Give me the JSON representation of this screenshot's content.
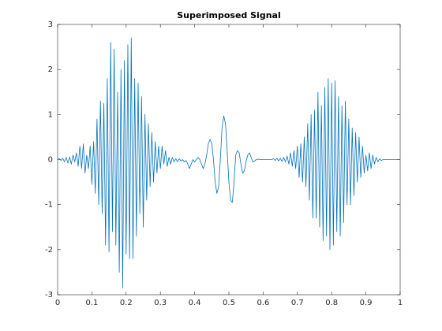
{
  "chart_data": {
    "type": "line",
    "title": "Superimposed Signal",
    "color": "#0072bd",
    "xlim": [
      0,
      1
    ],
    "ylim": [
      -3,
      3
    ],
    "xticks": [
      0,
      0.1,
      0.2,
      0.3,
      0.4,
      0.5,
      0.6,
      0.7,
      0.8,
      0.9,
      1
    ],
    "yticks": [
      -3,
      -2,
      -1,
      0,
      1,
      2,
      3
    ],
    "x": [
      0,
      0.005,
      0.01,
      0.015,
      0.02,
      0.025,
      0.03,
      0.035,
      0.04,
      0.045,
      0.05,
      0.055,
      0.06,
      0.065,
      0.07,
      0.075,
      0.08,
      0.085,
      0.09,
      0.095,
      0.1,
      0.105,
      0.11,
      0.115,
      0.12,
      0.125,
      0.13,
      0.135,
      0.14,
      0.145,
      0.15,
      0.155,
      0.16,
      0.165,
      0.17,
      0.175,
      0.18,
      0.185,
      0.19,
      0.195,
      0.2,
      0.205,
      0.21,
      0.215,
      0.22,
      0.225,
      0.23,
      0.235,
      0.24,
      0.245,
      0.25,
      0.255,
      0.26,
      0.265,
      0.27,
      0.275,
      0.28,
      0.285,
      0.29,
      0.295,
      0.3,
      0.305,
      0.31,
      0.315,
      0.32,
      0.325,
      0.33,
      0.335,
      0.34,
      0.345,
      0.35,
      0.355,
      0.36,
      0.365,
      0.37,
      0.375,
      0.38,
      0.385,
      0.39,
      0.395,
      0.4,
      0.405,
      0.41,
      0.415,
      0.42,
      0.425,
      0.43,
      0.435,
      0.44,
      0.445,
      0.45,
      0.455,
      0.46,
      0.465,
      0.47,
      0.475,
      0.48,
      0.485,
      0.49,
      0.495,
      0.5,
      0.505,
      0.51,
      0.515,
      0.52,
      0.525,
      0.53,
      0.535,
      0.54,
      0.545,
      0.55,
      0.555,
      0.56,
      0.565,
      0.57,
      0.575,
      0.58,
      0.585,
      0.59,
      0.595,
      0.6,
      0.605,
      0.61,
      0.615,
      0.62,
      0.625,
      0.63,
      0.635,
      0.64,
      0.645,
      0.65,
      0.655,
      0.66,
      0.665,
      0.67,
      0.675,
      0.68,
      0.685,
      0.69,
      0.695,
      0.7,
      0.705,
      0.71,
      0.715,
      0.72,
      0.725,
      0.73,
      0.735,
      0.74,
      0.745,
      0.75,
      0.755,
      0.76,
      0.765,
      0.77,
      0.775,
      0.78,
      0.785,
      0.79,
      0.795,
      0.8,
      0.805,
      0.81,
      0.815,
      0.82,
      0.825,
      0.83,
      0.835,
      0.84,
      0.845,
      0.85,
      0.855,
      0.86,
      0.865,
      0.87,
      0.875,
      0.88,
      0.885,
      0.89,
      0.895,
      0.9,
      0.905,
      0.91,
      0.915,
      0.92,
      0.925,
      0.93,
      0.935,
      0.94,
      0.945,
      0.95,
      0.955,
      0.96,
      0.965,
      0.97,
      0.975,
      0.98,
      0.985,
      0.99,
      0.995,
      1
    ],
    "values": [
      0,
      0.02,
      -0.02,
      0.03,
      -0.05,
      0.05,
      -0.08,
      0.06,
      -0.1,
      0.1,
      -0.05,
      0.15,
      -0.15,
      0.3,
      -0.2,
      0.35,
      -0.3,
      0.1,
      -0.2,
      0.3,
      -0.55,
      0.4,
      -0.75,
      0.9,
      -1.0,
      1.3,
      -1.2,
      1.25,
      -1.9,
      1.8,
      -2.05,
      2.6,
      -1.6,
      2.45,
      -1.9,
      1.5,
      -2.5,
      2.0,
      -2.85,
      2.2,
      -2.1,
      2.55,
      -2.2,
      2.7,
      -2.2,
      1.8,
      -1.7,
      1.7,
      -1.2,
      1.4,
      -1.5,
      1.0,
      -0.9,
      0.8,
      -0.6,
      0.6,
      -0.5,
      0.4,
      -0.3,
      0.3,
      -0.2,
      0.3,
      -0.1,
      0.2,
      -0.15,
      0.05,
      -0.1,
      0.05,
      -0.05,
      0.02,
      -0.05,
      0.02,
      -0.03,
      0,
      -0.05,
      -0.02,
      -0.1,
      -0.2,
      -0.1,
      0,
      -0.05,
      0,
      0.05,
      0,
      -0.1,
      -0.2,
      -0.1,
      0.1,
      0.35,
      0.45,
      0.35,
      0,
      -0.5,
      -0.75,
      -0.6,
      0,
      0.7,
      0.97,
      0.8,
      0.2,
      -0.5,
      -0.9,
      -0.95,
      -0.5,
      0.1,
      0.2,
      0.15,
      -0.1,
      -0.3,
      -0.25,
      -0.05,
      0.1,
      0.15,
      0.05,
      -0.05,
      -0.03,
      0,
      0.01,
      0,
      0,
      0,
      0,
      0,
      0,
      0,
      0,
      0.02,
      -0.02,
      0.03,
      -0.03,
      0.03,
      -0.04,
      0.05,
      -0.05,
      0.08,
      -0.1,
      0.15,
      -0.15,
      0.2,
      -0.2,
      0.3,
      -0.4,
      0.35,
      -0.5,
      0.5,
      -0.6,
      0.8,
      -0.9,
      1.0,
      -1.3,
      1.1,
      -1.3,
      1.5,
      -1.5,
      1.2,
      -1.8,
      1.6,
      -1.7,
      1.8,
      -2.0,
      1.7,
      -1.9,
      1.75,
      -1.6,
      1.4,
      -1.7,
      1.2,
      -1.4,
      1.3,
      -1.0,
      0.9,
      -1.0,
      0.7,
      -0.8,
      0.6,
      -0.5,
      0.5,
      -0.4,
      0.3,
      -0.3,
      0.1,
      -0.25,
      0.15,
      -0.2,
      0.1,
      -0.1,
      0.05,
      -0.05,
      0.02,
      -0.02,
      0,
      0,
      0,
      0,
      0,
      0,
      0,
      0,
      0,
      0,
      0
    ]
  }
}
